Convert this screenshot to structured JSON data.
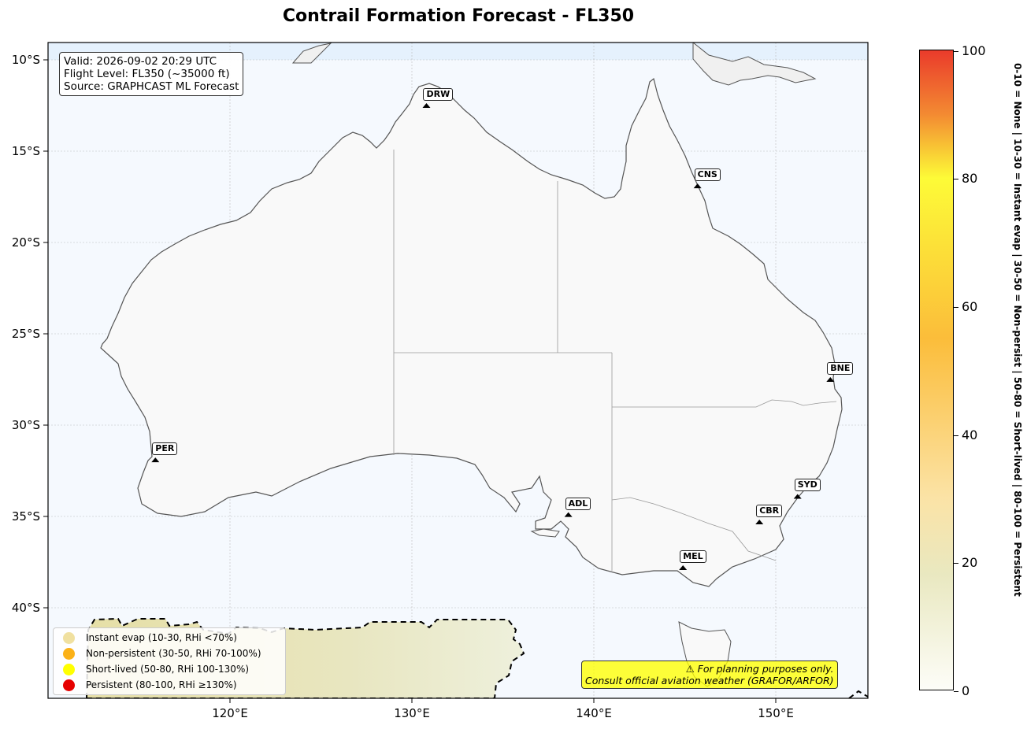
{
  "title": "Contrail Formation Forecast - FL350",
  "info": {
    "valid": "Valid: 2026-09-02 20:29 UTC",
    "flight_level": "Flight Level: FL350 (~35000 ft)",
    "source": "Source: GRAPHCAST ML Forecast"
  },
  "lat_ticks": [
    "10°S",
    "15°S",
    "20°S",
    "25°S",
    "30°S",
    "35°S",
    "40°S"
  ],
  "lon_ticks": [
    "120°E",
    "130°E",
    "140°E",
    "150°E"
  ],
  "cities": [
    {
      "code": "DRW",
      "lon": 130.8,
      "lat": -12.5
    },
    {
      "code": "CNS",
      "lon": 145.7,
      "lat": -16.9
    },
    {
      "code": "BNE",
      "lon": 153.0,
      "lat": -27.5
    },
    {
      "code": "PER",
      "lon": 115.9,
      "lat": -31.9
    },
    {
      "code": "SYD",
      "lon": 151.2,
      "lat": -33.9
    },
    {
      "code": "CBR",
      "lon": 149.1,
      "lat": -35.3
    },
    {
      "code": "ADL",
      "lon": 138.6,
      "lat": -34.9
    },
    {
      "code": "MEL",
      "lon": 144.9,
      "lat": -37.8
    }
  ],
  "legend": [
    {
      "label": "Instant evap (10-30, RHi <70%)",
      "color": "#f0e0a0"
    },
    {
      "label": "Non-persistent (30-50, RHi 70-100%)",
      "color": "#fbb117"
    },
    {
      "label": "Short-lived (50-80, RHi 100-130%)",
      "color": "#ffff00"
    },
    {
      "label": "Persistent (80-100, RHi ≥130%)",
      "color": "#e60000"
    }
  ],
  "warning": {
    "line1": "⚠ For planning purposes only.",
    "line2": "Consult official aviation weather (GRAFOR/ARFOR)"
  },
  "colorbar": {
    "ticks": [
      "0",
      "20",
      "40",
      "60",
      "80",
      "100"
    ],
    "label": "0-10 = None  |  10-30 = Instant evap  |  30-50 = Non-persist  |  50-80 = Short-lived  |  80-100 = Persistent"
  }
}
